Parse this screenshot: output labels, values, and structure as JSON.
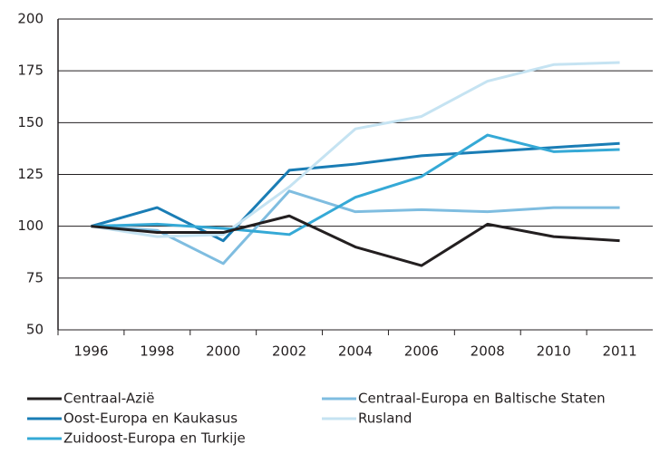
{
  "chart_data": {
    "type": "line",
    "categories": [
      "1996",
      "1998",
      "2000",
      "2002",
      "2004",
      "2006",
      "2008",
      "2010",
      "2011"
    ],
    "series": [
      {
        "name": "Centraal-Azië",
        "color": "#231f20",
        "values": [
          100,
          97,
          97,
          105,
          90,
          81,
          101,
          95,
          93
        ]
      },
      {
        "name": "Centraal-Europa en Baltische Staten",
        "color": "#7fbde0",
        "values": [
          100,
          98,
          82,
          117,
          107,
          108,
          107,
          109,
          109
        ]
      },
      {
        "name": "Oost-Europa en Kaukasus",
        "color": "#1a7db5",
        "values": [
          100,
          109,
          93,
          127,
          130,
          134,
          136,
          138,
          140
        ]
      },
      {
        "name": "Rusland",
        "color": "#c5e3f2",
        "values": [
          100,
          95,
          96,
          119,
          147,
          153,
          170,
          178,
          179
        ]
      },
      {
        "name": "Zuidoost-Europa en Turkije",
        "color": "#35a9d6",
        "values": [
          100,
          101,
          99,
          96,
          114,
          124,
          144,
          136,
          137
        ]
      }
    ],
    "ylim": [
      50,
      200
    ],
    "yticks": [
      50,
      75,
      100,
      125,
      150,
      175,
      200
    ],
    "grid": true
  }
}
